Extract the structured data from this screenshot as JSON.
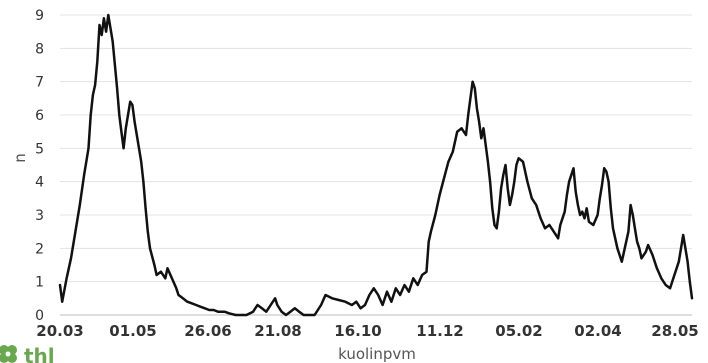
{
  "colors": {
    "line": "#111111",
    "grid": "#e3e3e3",
    "logo": "#6aa84f"
  },
  "logo": {
    "text": "thl"
  },
  "chart_data": {
    "type": "line",
    "title": "",
    "xlabel": "kuolinpvm",
    "ylabel": "n",
    "ylim": [
      0,
      9
    ],
    "yticks": [
      0,
      1,
      2,
      3,
      4,
      5,
      6,
      7,
      8,
      9
    ],
    "grid": true,
    "xtick_labels": [
      "20.03",
      "01.05",
      "26.06",
      "21.08",
      "16.10",
      "11.12",
      "05.02",
      "02.04",
      "28.05"
    ],
    "series": [
      {
        "values": [
          [
            0,
            0.9
          ],
          [
            1,
            0.4
          ],
          [
            3,
            1.1
          ],
          [
            5,
            1.7
          ],
          [
            7,
            2.5
          ],
          [
            9,
            3.3
          ],
          [
            11,
            4.2
          ],
          [
            13,
            5.0
          ],
          [
            14,
            6.0
          ],
          [
            15,
            6.6
          ],
          [
            16,
            6.9
          ],
          [
            17,
            7.6
          ],
          [
            18,
            8.7
          ],
          [
            19,
            8.4
          ],
          [
            20,
            8.9
          ],
          [
            21,
            8.5
          ],
          [
            22,
            9.0
          ],
          [
            23,
            8.6
          ],
          [
            24,
            8.2
          ],
          [
            25,
            7.5
          ],
          [
            26,
            6.8
          ],
          [
            27,
            6.0
          ],
          [
            28,
            5.5
          ],
          [
            29,
            5.0
          ],
          [
            30,
            5.6
          ],
          [
            31,
            6.0
          ],
          [
            32,
            6.4
          ],
          [
            33,
            6.3
          ],
          [
            34,
            5.8
          ],
          [
            35,
            5.4
          ],
          [
            36,
            5.0
          ],
          [
            37,
            4.6
          ],
          [
            38,
            4.0
          ],
          [
            39,
            3.2
          ],
          [
            40,
            2.5
          ],
          [
            41,
            2.0
          ],
          [
            43,
            1.5
          ],
          [
            44,
            1.2
          ],
          [
            46,
            1.3
          ],
          [
            48,
            1.1
          ],
          [
            49,
            1.4
          ],
          [
            51,
            1.1
          ],
          [
            53,
            0.8
          ],
          [
            54,
            0.6
          ],
          [
            56,
            0.5
          ],
          [
            58,
            0.4
          ],
          [
            60,
            0.35
          ],
          [
            62,
            0.3
          ],
          [
            64,
            0.25
          ],
          [
            66,
            0.2
          ],
          [
            68,
            0.15
          ],
          [
            70,
            0.15
          ],
          [
            72,
            0.1
          ],
          [
            75,
            0.1
          ],
          [
            77,
            0.05
          ],
          [
            80,
            0
          ],
          [
            85,
            0
          ],
          [
            88,
            0.1
          ],
          [
            90,
            0.3
          ],
          [
            92,
            0.2
          ],
          [
            94,
            0.1
          ],
          [
            96,
            0.3
          ],
          [
            98,
            0.5
          ],
          [
            99,
            0.3
          ],
          [
            101,
            0.1
          ],
          [
            103,
            0
          ],
          [
            105,
            0.1
          ],
          [
            107,
            0.2
          ],
          [
            109,
            0.1
          ],
          [
            111,
            0
          ],
          [
            116,
            0
          ],
          [
            119,
            0.3
          ],
          [
            121,
            0.6
          ],
          [
            124,
            0.5
          ],
          [
            127,
            0.45
          ],
          [
            130,
            0.4
          ],
          [
            133,
            0.3
          ],
          [
            135,
            0.4
          ],
          [
            137,
            0.2
          ],
          [
            139,
            0.3
          ],
          [
            141,
            0.6
          ],
          [
            143,
            0.8
          ],
          [
            145,
            0.6
          ],
          [
            147,
            0.3
          ],
          [
            149,
            0.7
          ],
          [
            151,
            0.4
          ],
          [
            153,
            0.8
          ],
          [
            155,
            0.6
          ],
          [
            157,
            0.9
          ],
          [
            159,
            0.7
          ],
          [
            161,
            1.1
          ],
          [
            163,
            0.9
          ],
          [
            165,
            1.2
          ],
          [
            167,
            1.3
          ],
          [
            168,
            2.2
          ],
          [
            169,
            2.5
          ],
          [
            171,
            3.0
          ],
          [
            173,
            3.6
          ],
          [
            175,
            4.1
          ],
          [
            177,
            4.6
          ],
          [
            179,
            4.9
          ],
          [
            181,
            5.5
          ],
          [
            183,
            5.6
          ],
          [
            185,
            5.4
          ],
          [
            186,
            6.0
          ],
          [
            187,
            6.5
          ],
          [
            188,
            7.0
          ],
          [
            189,
            6.8
          ],
          [
            190,
            6.2
          ],
          [
            191,
            5.8
          ],
          [
            192,
            5.3
          ],
          [
            193,
            5.6
          ],
          [
            194,
            5.1
          ],
          [
            195,
            4.6
          ],
          [
            196,
            4.0
          ],
          [
            197,
            3.2
          ],
          [
            198,
            2.7
          ],
          [
            199,
            2.6
          ],
          [
            200,
            3.1
          ],
          [
            201,
            3.8
          ],
          [
            202,
            4.2
          ],
          [
            203,
            4.5
          ],
          [
            204,
            3.8
          ],
          [
            205,
            3.3
          ],
          [
            206,
            3.6
          ],
          [
            207,
            4.0
          ],
          [
            208,
            4.5
          ],
          [
            209,
            4.7
          ],
          [
            211,
            4.6
          ],
          [
            213,
            4.0
          ],
          [
            215,
            3.5
          ],
          [
            217,
            3.3
          ],
          [
            219,
            2.9
          ],
          [
            221,
            2.6
          ],
          [
            223,
            2.7
          ],
          [
            225,
            2.5
          ],
          [
            227,
            2.3
          ],
          [
            228,
            2.7
          ],
          [
            229,
            2.9
          ],
          [
            230,
            3.1
          ],
          [
            231,
            3.6
          ],
          [
            232,
            4.0
          ],
          [
            234,
            4.4
          ],
          [
            235,
            3.7
          ],
          [
            236,
            3.3
          ],
          [
            237,
            3.0
          ],
          [
            238,
            3.1
          ],
          [
            239,
            2.9
          ],
          [
            240,
            3.2
          ],
          [
            241,
            2.8
          ],
          [
            243,
            2.7
          ],
          [
            245,
            3.0
          ],
          [
            246,
            3.5
          ],
          [
            247,
            3.9
          ],
          [
            248,
            4.4
          ],
          [
            249,
            4.3
          ],
          [
            250,
            4.0
          ],
          [
            251,
            3.2
          ],
          [
            252,
            2.6
          ],
          [
            253,
            2.3
          ],
          [
            254,
            2.0
          ],
          [
            255,
            1.8
          ],
          [
            256,
            1.6
          ],
          [
            257,
            1.9
          ],
          [
            258,
            2.2
          ],
          [
            259,
            2.5
          ],
          [
            260,
            3.3
          ],
          [
            261,
            3.0
          ],
          [
            262,
            2.6
          ],
          [
            263,
            2.2
          ],
          [
            264,
            2.0
          ],
          [
            265,
            1.7
          ],
          [
            267,
            1.9
          ],
          [
            268,
            2.1
          ],
          [
            270,
            1.8
          ],
          [
            272,
            1.4
          ],
          [
            274,
            1.1
          ],
          [
            276,
            0.9
          ],
          [
            278,
            0.8
          ],
          [
            280,
            1.2
          ],
          [
            282,
            1.6
          ],
          [
            284,
            2.4
          ],
          [
            285,
            2.0
          ],
          [
            286,
            1.6
          ],
          [
            287,
            1.0
          ],
          [
            288,
            0.5
          ]
        ]
      }
    ]
  }
}
